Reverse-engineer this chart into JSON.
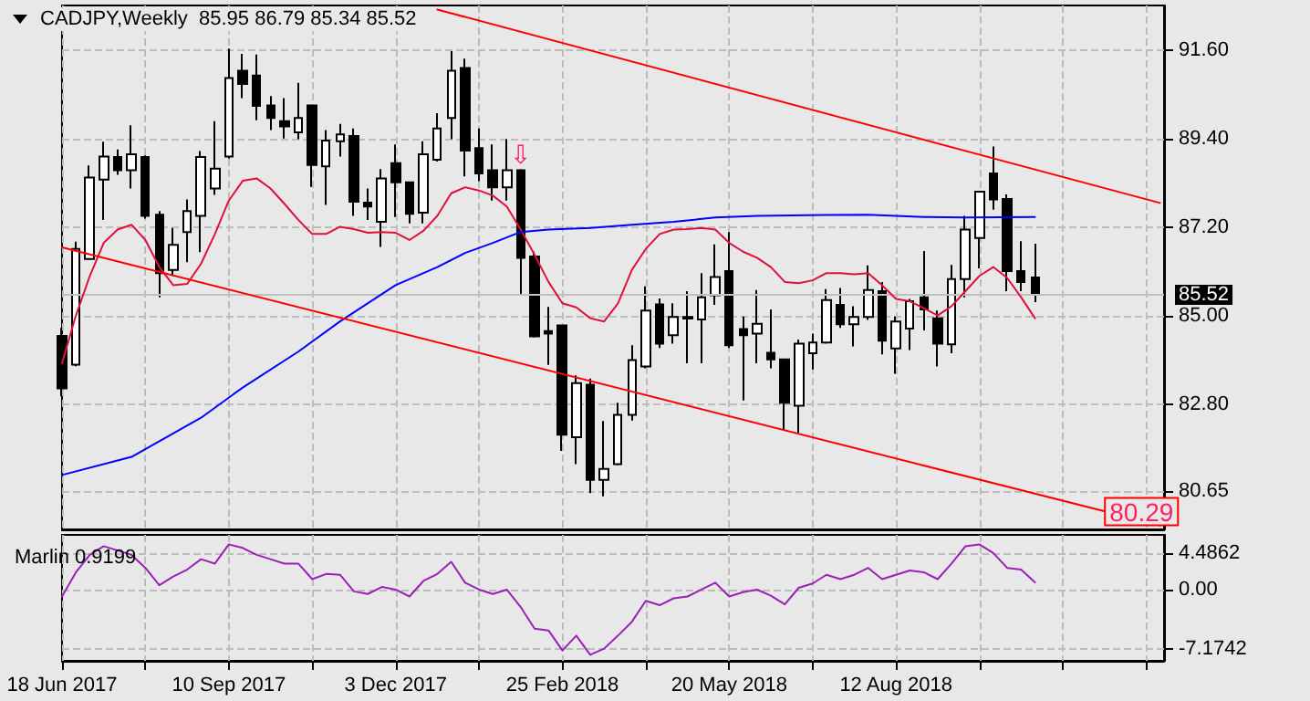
{
  "chart_data": [
    {
      "type": "candlestick",
      "title": "CADJPY,Weekly  85.95 86.79 85.34 85.52",
      "x": [
        "2017-06-18",
        "2017-06-25",
        "2017-07-02",
        "2017-07-09",
        "2017-07-16",
        "2017-07-23",
        "2017-07-30",
        "2017-08-06",
        "2017-08-13",
        "2017-08-20",
        "2017-08-27",
        "2017-09-03",
        "2017-09-10",
        "2017-09-17",
        "2017-09-24",
        "2017-10-01",
        "2017-10-08",
        "2017-10-15",
        "2017-10-22",
        "2017-10-29",
        "2017-11-05",
        "2017-11-12",
        "2017-11-19",
        "2017-11-26",
        "2017-12-03",
        "2017-12-10",
        "2017-12-17",
        "2017-12-24",
        "2017-12-31",
        "2018-01-07",
        "2018-01-14",
        "2018-01-21",
        "2018-01-28",
        "2018-02-04",
        "2018-02-11",
        "2018-02-18",
        "2018-02-25",
        "2018-03-04",
        "2018-03-11",
        "2018-03-18",
        "2018-03-25",
        "2018-04-01",
        "2018-04-08",
        "2018-04-15",
        "2018-04-22",
        "2018-04-29",
        "2018-05-06",
        "2018-05-13",
        "2018-05-20",
        "2018-05-27",
        "2018-06-03",
        "2018-06-10",
        "2018-06-17",
        "2018-06-24",
        "2018-07-01",
        "2018-07-08",
        "2018-07-15",
        "2018-07-22",
        "2018-07-29",
        "2018-08-05",
        "2018-08-12",
        "2018-08-19",
        "2018-08-26",
        "2018-09-02",
        "2018-09-09",
        "2018-09-16",
        "2018-09-23",
        "2018-09-30",
        "2018-10-07",
        "2018-10-14",
        "2018-10-21"
      ],
      "ohlc": [
        [
          84.5,
          84.7,
          83.0,
          83.2
        ],
        [
          83.79,
          86.84,
          83.75,
          86.66
        ],
        [
          86.41,
          88.73,
          86.4,
          88.43
        ],
        [
          88.38,
          89.32,
          87.38,
          88.95
        ],
        [
          88.94,
          89.13,
          88.5,
          88.61
        ],
        [
          88.61,
          89.73,
          88.16,
          89.01
        ],
        [
          88.94,
          88.98,
          87.41,
          87.48
        ],
        [
          87.51,
          87.6,
          85.46,
          86.06
        ],
        [
          86.14,
          87.18,
          85.99,
          86.76
        ],
        [
          87.08,
          87.89,
          86.33,
          87.6
        ],
        [
          87.48,
          89.09,
          86.58,
          88.94
        ],
        [
          88.16,
          89.83,
          88.0,
          88.65
        ],
        [
          88.95,
          91.63,
          88.9,
          90.9
        ],
        [
          91.08,
          91.5,
          90.4,
          90.75
        ],
        [
          90.96,
          91.48,
          89.85,
          90.21
        ],
        [
          90.22,
          90.45,
          89.61,
          89.91
        ],
        [
          89.83,
          90.4,
          89.4,
          89.7
        ],
        [
          89.55,
          90.78,
          89.38,
          89.91
        ],
        [
          90.22,
          90.22,
          88.2,
          88.74
        ],
        [
          88.71,
          89.61,
          87.75,
          89.35
        ],
        [
          89.33,
          89.76,
          88.95,
          89.5
        ],
        [
          89.46,
          89.65,
          87.48,
          87.83
        ],
        [
          87.81,
          88.16,
          87.38,
          87.71
        ],
        [
          87.33,
          88.64,
          86.71,
          88.41
        ],
        [
          88.79,
          89.25,
          87.45,
          88.31
        ],
        [
          88.31,
          88.31,
          87.29,
          87.53
        ],
        [
          87.56,
          89.33,
          87.29,
          89.01
        ],
        [
          88.87,
          90.03,
          88.83,
          89.65
        ],
        [
          89.91,
          91.57,
          89.38,
          91.08
        ],
        [
          91.15,
          91.38,
          88.46,
          89.1
        ],
        [
          89.16,
          89.65,
          88.34,
          88.53
        ],
        [
          88.61,
          89.25,
          87.86,
          88.19
        ],
        [
          88.19,
          89.38,
          87.86,
          88.61
        ],
        [
          88.61,
          88.64,
          85.54,
          86.44
        ],
        [
          86.47,
          86.59,
          84.46,
          84.49
        ],
        [
          84.62,
          85.22,
          83.78,
          84.56
        ],
        [
          84.76,
          84.76,
          81.65,
          82.05
        ],
        [
          81.99,
          83.52,
          81.32,
          83.33
        ],
        [
          83.29,
          83.44,
          80.6,
          80.93
        ],
        [
          80.93,
          82.39,
          80.52,
          81.2
        ],
        [
          81.32,
          82.84,
          81.29,
          82.54
        ],
        [
          82.54,
          84.27,
          82.4,
          83.9
        ],
        [
          83.74,
          85.73,
          83.7,
          85.13
        ],
        [
          85.28,
          85.43,
          84.2,
          84.31
        ],
        [
          84.52,
          85.31,
          84.31,
          84.97
        ],
        [
          84.93,
          85.61,
          83.82,
          84.97
        ],
        [
          84.91,
          86.06,
          83.82,
          85.46
        ],
        [
          85.51,
          86.77,
          85.27,
          85.96
        ],
        [
          86.11,
          87.08,
          84.2,
          84.27
        ],
        [
          84.67,
          84.98,
          82.9,
          84.52
        ],
        [
          84.56,
          85.64,
          83.82,
          84.8
        ],
        [
          84.08,
          85.16,
          83.7,
          83.92
        ],
        [
          83.92,
          83.92,
          82.17,
          82.84
        ],
        [
          82.77,
          84.41,
          82.1,
          84.31
        ],
        [
          84.07,
          84.56,
          83.67,
          84.34
        ],
        [
          84.34,
          85.66,
          84.31,
          85.39
        ],
        [
          85.27,
          85.69,
          84.7,
          84.79
        ],
        [
          84.79,
          85.24,
          84.24,
          84.97
        ],
        [
          84.97,
          86.25,
          84.9,
          85.64
        ],
        [
          85.61,
          85.84,
          84.04,
          84.38
        ],
        [
          84.19,
          84.98,
          83.56,
          84.86
        ],
        [
          84.68,
          85.42,
          84.15,
          85.36
        ],
        [
          85.46,
          86.61,
          84.64,
          85.16
        ],
        [
          84.94,
          85.13,
          83.74,
          84.31
        ],
        [
          84.29,
          86.26,
          84.07,
          85.91
        ],
        [
          85.91,
          87.48,
          85.46,
          87.14
        ],
        [
          86.93,
          88.08,
          86.18,
          88.08
        ],
        [
          88.53,
          89.2,
          87.63,
          87.89
        ],
        [
          87.9,
          88.01,
          85.61,
          86.11
        ],
        [
          86.11,
          86.85,
          85.61,
          85.84
        ],
        [
          85.95,
          86.79,
          85.34,
          85.52
        ]
      ],
      "series": [
        {
          "type": "line",
          "color": "#e0103a",
          "values": [
            83.82,
            85.01,
            85.99,
            86.81,
            87.14,
            87.26,
            86.88,
            86.21,
            85.76,
            85.79,
            86.29,
            87.03,
            87.86,
            88.35,
            88.41,
            88.16,
            87.78,
            87.38,
            87.03,
            87.03,
            87.21,
            87.15,
            87.06,
            87.08,
            87.06,
            86.88,
            87.11,
            87.48,
            88.04,
            88.19,
            88.11,
            87.98,
            87.71,
            87.14,
            86.51,
            85.84,
            85.31,
            85.21,
            84.94,
            84.86,
            85.31,
            86.14,
            86.66,
            87.03,
            87.14,
            87.15,
            87.18,
            87.14,
            86.81,
            86.59,
            86.44,
            86.21,
            85.84,
            85.81,
            85.88,
            86.06,
            86.06,
            86.03,
            86.06,
            85.76,
            85.42,
            85.36,
            85.19,
            85.01,
            85.24,
            85.61,
            85.99,
            86.21,
            85.94,
            85.46,
            84.94
          ]
        },
        {
          "type": "line",
          "color": "#0000ff",
          "x": [
            "2017-06-18",
            "2017-07-23",
            "2017-08-27",
            "2017-09-17",
            "2017-10-15",
            "2017-11-05",
            "2017-12-03",
            "2017-12-24",
            "2018-01-07",
            "2018-01-21",
            "2018-02-04",
            "2018-02-18",
            "2018-03-11",
            "2018-04-01",
            "2018-04-22",
            "2018-05-13",
            "2018-06-03",
            "2018-07-08",
            "2018-07-29",
            "2018-08-26",
            "2018-09-16",
            "2018-10-21"
          ],
          "values": [
            81.05,
            81.5,
            82.47,
            83.22,
            84.11,
            84.86,
            85.76,
            86.21,
            86.56,
            86.81,
            87.08,
            87.14,
            87.18,
            87.26,
            87.33,
            87.44,
            87.48,
            87.5,
            87.51,
            87.45,
            87.44,
            87.45
          ]
        },
        {
          "type": "line",
          "color": "#ff0000",
          "x": [
            "2017-12-24",
            "2018-12-23"
          ],
          "values": [
            92.6,
            87.8
          ]
        },
        {
          "type": "line",
          "color": "#ff0000",
          "x": [
            "2017-06-18",
            "2018-12-23"
          ],
          "values": [
            86.7,
            79.8
          ]
        }
      ],
      "xlim": [
        "2017-06-18",
        "2018-12-25"
      ],
      "xticks": [
        {
          "value": "2017-06-18",
          "label": null
        },
        {
          "value": "2017-07-30",
          "label": null
        },
        {
          "value": "2017-09-10",
          "label": null
        },
        {
          "value": "2017-10-22",
          "label": null
        },
        {
          "value": "2017-12-03",
          "label": null
        },
        {
          "value": "2018-01-14",
          "label": null
        },
        {
          "value": "2018-02-25",
          "label": null
        },
        {
          "value": "2018-04-08",
          "label": null
        },
        {
          "value": "2018-05-20",
          "label": null
        },
        {
          "value": "2018-07-01",
          "label": null
        },
        {
          "value": "2018-08-12",
          "label": null
        },
        {
          "value": "2018-09-23",
          "label": null
        },
        {
          "value": "2018-11-04",
          "label": null
        },
        {
          "value": "2018-12-16",
          "label": null
        }
      ],
      "ylim": [
        79.7,
        92.7
      ],
      "yticks": [
        {
          "value": 80.65,
          "label": "80.65"
        },
        {
          "value": 82.8,
          "label": "82.80"
        },
        {
          "value": 85,
          "label": "85.00"
        },
        {
          "value": 87.2,
          "label": "87.20"
        },
        {
          "value": 89.4,
          "label": "89.40"
        },
        {
          "value": 91.6,
          "label": "91.60"
        }
      ],
      "grid": true,
      "tick_labels": "y",
      "ref_lines": [
        {
          "axis": "y",
          "value": 85.52,
          "label": "85.52",
          "color": "#c0c0c0"
        }
      ],
      "annotations": [
        {
          "text": "⇩",
          "x": "2018-02-04",
          "y": 88.64
        },
        {
          "text": "80.29",
          "x": "2018-11-11",
          "y": 80.32
        }
      ]
    },
    {
      "type": "line",
      "title": "Marlin 0.9199",
      "color": "#9a20b8",
      "x": [
        "2017-06-18",
        "2017-06-25",
        "2017-07-02",
        "2017-07-09",
        "2017-07-16",
        "2017-07-23",
        "2017-07-30",
        "2017-08-06",
        "2017-08-13",
        "2017-08-20",
        "2017-08-27",
        "2017-09-03",
        "2017-09-10",
        "2017-09-17",
        "2017-09-24",
        "2017-10-01",
        "2017-10-08",
        "2017-10-15",
        "2017-10-22",
        "2017-10-29",
        "2017-11-05",
        "2017-11-12",
        "2017-11-19",
        "2017-11-26",
        "2017-12-03",
        "2017-12-10",
        "2017-12-17",
        "2017-12-24",
        "2017-12-31",
        "2018-01-07",
        "2018-01-14",
        "2018-01-21",
        "2018-01-28",
        "2018-02-04",
        "2018-02-11",
        "2018-02-18",
        "2018-02-25",
        "2018-03-04",
        "2018-03-11",
        "2018-03-18",
        "2018-03-25",
        "2018-04-01",
        "2018-04-08",
        "2018-04-15",
        "2018-04-22",
        "2018-04-29",
        "2018-05-06",
        "2018-05-13",
        "2018-05-20",
        "2018-05-27",
        "2018-06-03",
        "2018-06-10",
        "2018-06-17",
        "2018-06-24",
        "2018-07-01",
        "2018-07-08",
        "2018-07-15",
        "2018-07-22",
        "2018-07-29",
        "2018-08-05",
        "2018-08-12",
        "2018-08-19",
        "2018-08-26",
        "2018-09-02",
        "2018-09-09",
        "2018-09-16",
        "2018-09-23",
        "2018-09-30",
        "2018-10-07",
        "2018-10-14",
        "2018-10-21"
      ],
      "values": [
        -0.81,
        2.15,
        4.27,
        5.33,
        4.8,
        4.27,
        2.68,
        0.56,
        1.62,
        2.47,
        3.74,
        3.21,
        5.55,
        5.12,
        4.27,
        3.74,
        3.21,
        3.21,
        1.31,
        1.94,
        1.84,
        -0.18,
        -0.5,
        0.35,
        0.03,
        -0.81,
        1.09,
        1.94,
        3.43,
        0.88,
        0.03,
        -0.5,
        0.03,
        -2.09,
        -4.74,
        -4.95,
        -7.39,
        -5.58,
        -7.92,
        -7.17,
        -5.58,
        -3.89,
        -1.34,
        -1.87,
        -1.03,
        -0.81,
        0.03,
        0.88,
        -0.81,
        -0.28,
        0.03,
        -0.71,
        -1.77,
        0.25,
        0.78,
        1.84,
        1.31,
        1.84,
        2.68,
        1.31,
        1.84,
        2.37,
        2.15,
        1.31,
        3.21,
        5.33,
        5.55,
        4.49,
        2.68,
        2.47,
        0.92
      ],
      "xlim": [
        "2017-06-18",
        "2018-12-25"
      ],
      "xticks": [
        {
          "value": "2017-06-18",
          "label": "18 Jun 2017"
        },
        {
          "value": "2017-07-30",
          "label": null
        },
        {
          "value": "2017-09-10",
          "label": "10 Sep 2017"
        },
        {
          "value": "2017-10-22",
          "label": null
        },
        {
          "value": "2017-12-03",
          "label": "3 Dec 2017"
        },
        {
          "value": "2018-01-14",
          "label": null
        },
        {
          "value": "2018-02-25",
          "label": "25 Feb 2018"
        },
        {
          "value": "2018-04-08",
          "label": null
        },
        {
          "value": "2018-05-20",
          "label": "20 May 2018"
        },
        {
          "value": "2018-07-01",
          "label": null
        },
        {
          "value": "2018-08-12",
          "label": "12 Aug 2018"
        },
        {
          "value": "2018-09-23",
          "label": null
        },
        {
          "value": "2018-11-04",
          "label": null
        },
        {
          "value": "2018-12-16",
          "label": null
        }
      ],
      "ylim": [
        -8.66,
        6.71
      ],
      "yticks": [
        -7.1742,
        {
          "value": 0,
          "label": "0.00"
        },
        4.4862
      ],
      "grid": true
    }
  ]
}
